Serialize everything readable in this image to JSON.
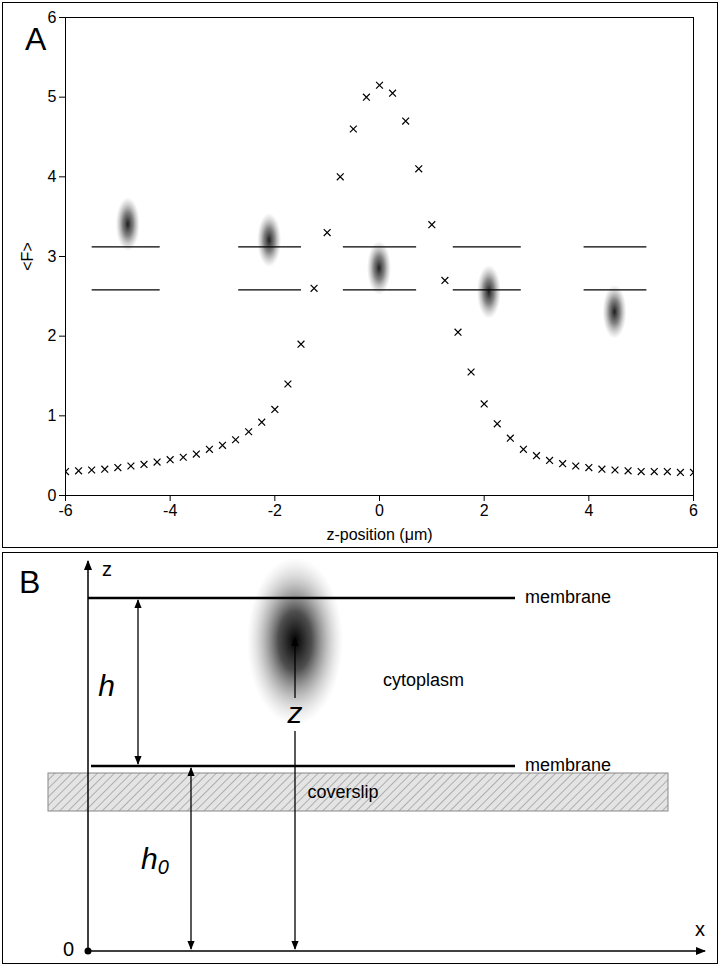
{
  "chart_data": {
    "type": "scatter",
    "panel_label": "A",
    "x_label": "z-position (μm)",
    "y_label": "<F>",
    "x": [
      -6,
      -5.75,
      -5.5,
      -5.25,
      -5,
      -4.75,
      -4.5,
      -4.25,
      -4,
      -3.75,
      -3.5,
      -3.25,
      -3,
      -2.75,
      -2.5,
      -2.25,
      -2,
      -1.75,
      -1.5,
      -1.25,
      -1,
      -0.75,
      -0.5,
      -0.25,
      0,
      0.25,
      0.5,
      0.75,
      1,
      1.25,
      1.5,
      1.75,
      2,
      2.25,
      2.5,
      2.75,
      3,
      3.25,
      3.5,
      3.75,
      4,
      4.25,
      4.5,
      4.75,
      5,
      5.25,
      5.5,
      5.75,
      6
    ],
    "values": [
      0.3,
      0.31,
      0.32,
      0.33,
      0.35,
      0.37,
      0.39,
      0.42,
      0.45,
      0.48,
      0.52,
      0.58,
      0.63,
      0.7,
      0.8,
      0.92,
      1.08,
      1.4,
      1.9,
      2.6,
      3.3,
      4.0,
      4.6,
      5.0,
      5.15,
      5.05,
      4.7,
      4.1,
      3.4,
      2.7,
      2.05,
      1.55,
      1.15,
      0.9,
      0.72,
      0.58,
      0.5,
      0.44,
      0.4,
      0.37,
      0.35,
      0.33,
      0.32,
      0.31,
      0.3,
      0.3,
      0.3,
      0.29,
      0.29
    ],
    "color": "#000000",
    "marker": "x",
    "xlim": [
      -6,
      6
    ],
    "xticks": [
      -6,
      -4,
      -2,
      0,
      2,
      4,
      6
    ],
    "ylim": [
      0,
      6
    ],
    "yticks": [
      0,
      1,
      2,
      3,
      4,
      5,
      6
    ],
    "grid": false,
    "spots": {
      "x": [
        -4.8,
        -2.1,
        0,
        2.1,
        4.5
      ],
      "y": [
        3.4,
        3.2,
        2.85,
        2.55,
        2.3
      ]
    },
    "levels": [
      3.12,
      2.58
    ],
    "level_segments": [
      [
        -5.5,
        -4.2
      ],
      [
        -2.7,
        -1.5
      ],
      [
        -0.7,
        0.7
      ],
      [
        1.4,
        2.7
      ],
      [
        3.9,
        5.1
      ]
    ]
  },
  "diagram": {
    "panel_label": "B",
    "axes": {
      "vertical": "z",
      "horizontal": "x",
      "origin": "0"
    },
    "layers": {
      "top_membrane": "membrane",
      "bottom_membrane": "membrane",
      "interior": "cytoplasm",
      "substrate": "coverslip"
    },
    "dimensions": {
      "height": "h",
      "offset": {
        "base": "h",
        "subscript": "0"
      },
      "position": "z"
    }
  }
}
